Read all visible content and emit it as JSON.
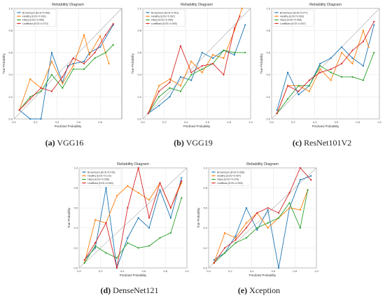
{
  "chart_data": [
    {
      "type": "line",
      "title": "Reliability Diagram",
      "xlabel": "Predicted Probability",
      "ylabel": "True Probability",
      "caption_letter": "(a)",
      "caption_name": "VGG16",
      "xlim": [
        0,
        1
      ],
      "ylim": [
        0,
        1
      ],
      "grid": true,
      "legend": "top-left",
      "xticks": [
        "0.0",
        "0.2",
        "0.4",
        "0.6",
        "0.8"
      ],
      "yticks": [
        "0.0",
        "0.2",
        "0.4",
        "0.6",
        "0.8",
        "1.0"
      ],
      "series": [
        {
          "name": "BrownSpot (ECE=0.066)",
          "color": "#1f77b4",
          "x": [
            0.05,
            0.15,
            0.25,
            0.3,
            0.35,
            0.45,
            0.5,
            0.55,
            0.65,
            0.7,
            0.8,
            0.92
          ],
          "y": [
            0.08,
            0.0,
            0.0,
            0.3,
            0.6,
            0.33,
            0.48,
            0.5,
            0.52,
            0.6,
            0.65,
            0.85
          ]
        },
        {
          "name": "Healthy (ECE=0.061)",
          "color": "#ff7f0e",
          "x": [
            0.05,
            0.15,
            0.25,
            0.35,
            0.45,
            0.55,
            0.65,
            0.7,
            0.8,
            0.88
          ],
          "y": [
            0.08,
            0.36,
            0.28,
            0.52,
            0.32,
            0.48,
            0.76,
            0.58,
            0.75,
            0.5
          ]
        },
        {
          "name": "Hispa (ECE=0.066)",
          "color": "#2ca02c",
          "x": [
            0.05,
            0.15,
            0.25,
            0.35,
            0.45,
            0.55,
            0.65,
            0.75,
            0.85,
            0.92
          ],
          "y": [
            0.08,
            0.2,
            0.25,
            0.4,
            0.28,
            0.45,
            0.45,
            0.55,
            0.6,
            0.67
          ]
        },
        {
          "name": "LeafBlast (ECE=0.070)",
          "color": "#d62728",
          "x": [
            0.05,
            0.15,
            0.25,
            0.35,
            0.45,
            0.55,
            0.65,
            0.75,
            0.85,
            0.92
          ],
          "y": [
            0.08,
            0.18,
            0.28,
            0.25,
            0.38,
            0.55,
            0.5,
            0.6,
            0.76,
            0.86
          ]
        }
      ]
    },
    {
      "type": "line",
      "title": "Reliability Diagram",
      "xlabel": "Predicted Probability",
      "ylabel": "True Probability",
      "caption_letter": "(b)",
      "caption_name": "VGG19",
      "xlim": [
        0,
        1
      ],
      "ylim": [
        0,
        1
      ],
      "grid": true,
      "legend": "top-left",
      "xticks": [
        "0.0",
        "0.2",
        "0.4",
        "0.6",
        "0.8",
        "1.0"
      ],
      "yticks": [
        "0.0",
        "0.2",
        "0.4",
        "0.6",
        "0.8",
        "1.0"
      ],
      "series": [
        {
          "name": "BrownSpot (ECE=0.061)",
          "color": "#1f77b4",
          "x": [
            0.05,
            0.15,
            0.25,
            0.35,
            0.45,
            0.55,
            0.65,
            0.75,
            0.85,
            0.95
          ],
          "y": [
            0.05,
            0.12,
            0.2,
            0.38,
            0.35,
            0.6,
            0.55,
            0.62,
            0.58,
            0.85
          ]
        },
        {
          "name": "Healthy (ECE=0.067)",
          "color": "#ff7f0e",
          "x": [
            0.05,
            0.15,
            0.25,
            0.35,
            0.45,
            0.55,
            0.65,
            0.75,
            0.85,
            0.92
          ],
          "y": [
            0.05,
            0.3,
            0.36,
            0.3,
            0.52,
            0.42,
            0.58,
            0.55,
            0.8,
            1.0
          ]
        },
        {
          "name": "Hispa (ECE=0.055)",
          "color": "#2ca02c",
          "x": [
            0.05,
            0.15,
            0.25,
            0.35,
            0.45,
            0.55,
            0.65,
            0.75,
            0.85,
            0.95
          ],
          "y": [
            0.05,
            0.2,
            0.28,
            0.25,
            0.4,
            0.45,
            0.5,
            0.62,
            0.6,
            0.6
          ]
        },
        {
          "name": "LeafBlast (ECE=0.069)",
          "color": "#d62728",
          "x": [
            0.05,
            0.15,
            0.25,
            0.35,
            0.45,
            0.55,
            0.65,
            0.75,
            0.85,
            0.9
          ],
          "y": [
            0.05,
            0.25,
            0.33,
            0.66,
            0.42,
            0.48,
            0.5,
            0.4,
            0.82,
            0.93
          ]
        }
      ]
    },
    {
      "type": "line",
      "title": "Reliability Diagram",
      "xlabel": "Predicted Probability",
      "ylabel": "True Probability",
      "caption_letter": "(c)",
      "caption_name": "ResNet101V2",
      "xlim": [
        0,
        1
      ],
      "ylim": [
        0,
        1
      ],
      "grid": true,
      "legend": "top-left",
      "xticks": [
        "0.0",
        "0.2",
        "0.4",
        "0.6",
        "0.8",
        "1.0"
      ],
      "yticks": [
        "0.0",
        "0.2",
        "0.4",
        "0.6",
        "0.8",
        "1.0"
      ],
      "series": [
        {
          "name": "BrownSpot (ECE=0.077)",
          "color": "#1f77b4",
          "x": [
            0.05,
            0.15,
            0.25,
            0.35,
            0.45,
            0.55,
            0.65,
            0.75,
            0.85,
            0.95
          ],
          "y": [
            0.08,
            0.42,
            0.22,
            0.3,
            0.5,
            0.55,
            0.65,
            0.55,
            0.48,
            0.85
          ]
        },
        {
          "name": "Healthy (ECE=0.063)",
          "color": "#ff7f0e",
          "x": [
            0.05,
            0.15,
            0.25,
            0.35,
            0.45,
            0.55,
            0.65,
            0.75,
            0.85,
            0.9
          ],
          "y": [
            0.05,
            0.3,
            0.3,
            0.25,
            0.45,
            0.35,
            0.6,
            0.5,
            0.8,
            0.65
          ]
        },
        {
          "name": "Hispa (ECE=0.058)",
          "color": "#2ca02c",
          "x": [
            0.05,
            0.15,
            0.25,
            0.35,
            0.45,
            0.55,
            0.65,
            0.75,
            0.85,
            0.95
          ],
          "y": [
            0.05,
            0.18,
            0.3,
            0.3,
            0.48,
            0.42,
            0.38,
            0.38,
            0.35,
            0.6
          ]
        },
        {
          "name": "LeafBlast (ECE=0.057)",
          "color": "#d62728",
          "x": [
            0.05,
            0.15,
            0.25,
            0.35,
            0.45,
            0.55,
            0.65,
            0.75,
            0.85,
            0.95
          ],
          "y": [
            0.05,
            0.3,
            0.25,
            0.35,
            0.42,
            0.45,
            0.5,
            0.62,
            0.7,
            0.88
          ]
        }
      ]
    },
    {
      "type": "line",
      "title": "Reliability Diagram",
      "xlabel": "Predicted Probability",
      "ylabel": "True Probability",
      "caption_letter": "(d)",
      "caption_name": "DenseNet121",
      "xlim": [
        0,
        1
      ],
      "ylim": [
        0,
        1
      ],
      "grid": true,
      "legend": "top-left",
      "xticks": [
        "0.0",
        "0.2",
        "0.4",
        "0.6",
        "0.8",
        "1.0"
      ],
      "yticks": [
        "0.0",
        "0.2",
        "0.4",
        "0.6",
        "0.8",
        "1.0"
      ],
      "series": [
        {
          "name": "BrownSpot (ECE=0.078)",
          "color": "#1f77b4",
          "x": [
            0.05,
            0.15,
            0.25,
            0.35,
            0.45,
            0.55,
            0.65,
            0.75,
            0.85,
            0.95
          ],
          "y": [
            0.08,
            0.2,
            0.8,
            0.0,
            0.3,
            0.5,
            0.4,
            0.78,
            0.5,
            0.9
          ]
        },
        {
          "name": "Healthy (ECE=0.122)",
          "color": "#ff7f0e",
          "x": [
            0.05,
            0.15,
            0.25,
            0.35,
            0.45,
            0.55,
            0.65,
            0.75,
            0.85,
            0.95
          ],
          "y": [
            0.05,
            0.48,
            0.45,
            0.72,
            0.82,
            0.75,
            0.68,
            0.85,
            0.6,
            0.85
          ]
        },
        {
          "name": "Hispa (ECE=0.058)",
          "color": "#2ca02c",
          "x": [
            0.05,
            0.15,
            0.25,
            0.35,
            0.45,
            0.55,
            0.65,
            0.75,
            0.85,
            0.95
          ],
          "y": [
            0.05,
            0.22,
            0.15,
            0.1,
            0.25,
            0.2,
            0.22,
            0.3,
            0.35,
            0.7
          ]
        },
        {
          "name": "LeafBlast (ECE=0.069)",
          "color": "#d62728",
          "x": [
            0.05,
            0.15,
            0.25,
            0.35,
            0.45,
            0.55,
            0.65,
            0.75,
            0.85,
            0.95
          ],
          "y": [
            0.08,
            0.25,
            0.45,
            0.0,
            0.6,
            1.0,
            0.5,
            0.85,
            0.6,
            0.87
          ]
        }
      ]
    },
    {
      "type": "line",
      "title": "Reliability Diagram",
      "xlabel": "Predicted Probability",
      "ylabel": "True Probability",
      "caption_letter": "(e)",
      "caption_name": "Xception",
      "xlim": [
        0,
        1
      ],
      "ylim": [
        0,
        1
      ],
      "grid": true,
      "legend": "top-left",
      "xticks": [
        "0.0",
        "0.2",
        "0.4",
        "0.6",
        "0.8",
        "1.0"
      ],
      "yticks": [
        "0.0",
        "0.2",
        "0.4",
        "0.6",
        "0.8",
        "1.0"
      ],
      "series": [
        {
          "name": "BrownSpot (ECE=0.058)",
          "color": "#1f77b4",
          "x": [
            0.05,
            0.15,
            0.25,
            0.35,
            0.45,
            0.55,
            0.65,
            0.75,
            0.85,
            0.95
          ],
          "y": [
            0.08,
            0.15,
            0.32,
            0.6,
            0.38,
            0.58,
            0.0,
            0.6,
            0.88,
            0.92
          ]
        },
        {
          "name": "Healthy (ECE=0.067)",
          "color": "#ff7f0e",
          "x": [
            0.05,
            0.15,
            0.25,
            0.35,
            0.45,
            0.55,
            0.65,
            0.75,
            0.85,
            0.92
          ],
          "y": [
            0.05,
            0.35,
            0.3,
            0.45,
            0.55,
            0.4,
            0.5,
            0.6,
            0.58,
            0.78
          ]
        },
        {
          "name": "Hispa (ECE=0.078)",
          "color": "#2ca02c",
          "x": [
            0.05,
            0.15,
            0.25,
            0.35,
            0.45,
            0.55,
            0.65,
            0.75,
            0.85,
            0.92
          ],
          "y": [
            0.05,
            0.15,
            0.25,
            0.3,
            0.4,
            0.45,
            0.5,
            0.65,
            0.4,
            0.78
          ]
        },
        {
          "name": "LeafBlast (ECE=0.059)",
          "color": "#d62728",
          "x": [
            0.05,
            0.15,
            0.25,
            0.35,
            0.45,
            0.55,
            0.65,
            0.75,
            0.85,
            0.95
          ],
          "y": [
            0.05,
            0.2,
            0.28,
            0.4,
            0.55,
            0.6,
            0.55,
            0.75,
            1.0,
            0.88
          ]
        }
      ]
    }
  ]
}
